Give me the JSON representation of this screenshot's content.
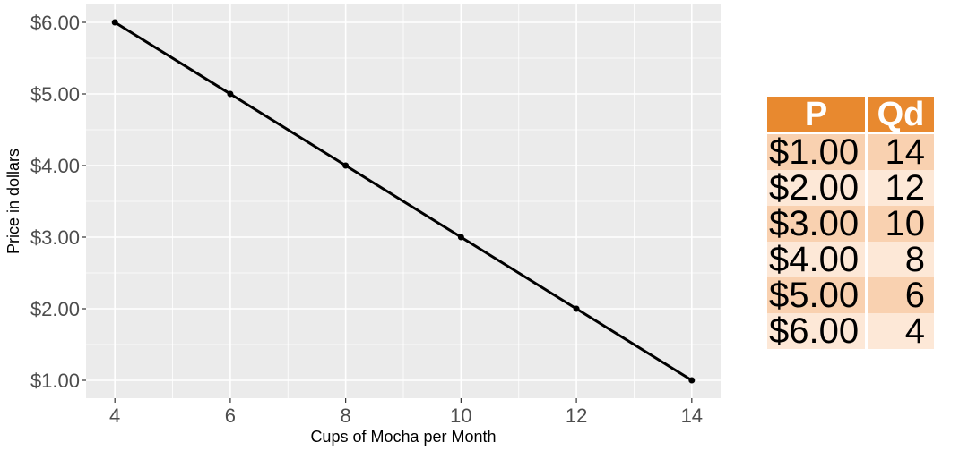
{
  "chart_data": {
    "type": "line",
    "title": "",
    "xlabel": "Cups of Mocha per Month",
    "ylabel": "Price in dollars",
    "x": [
      4,
      6,
      8,
      10,
      12,
      14
    ],
    "y": [
      6,
      5,
      4,
      3,
      2,
      1
    ],
    "xlim": [
      3.5,
      14.5
    ],
    "ylim": [
      0.75,
      6.25
    ],
    "x_ticks": [
      "4",
      "6",
      "8",
      "10",
      "12",
      "14"
    ],
    "y_ticks": [
      "$1.00",
      "$2.00",
      "$3.00",
      "$4.00",
      "$5.00",
      "$6.00"
    ],
    "y_tick_values": [
      1,
      2,
      3,
      4,
      5,
      6
    ],
    "grid": true,
    "line_color": "#000000",
    "panel_color": "#ebebeb",
    "grid_color": "#ffffff"
  },
  "table": {
    "headers": [
      "P",
      "Qd"
    ],
    "rows": [
      {
        "p": "$1.00",
        "qd": "14"
      },
      {
        "p": "$2.00",
        "qd": "12"
      },
      {
        "p": "$3.00",
        "qd": "10"
      },
      {
        "p": "$4.00",
        "qd": "8"
      },
      {
        "p": "$5.00",
        "qd": "6"
      },
      {
        "p": "$6.00",
        "qd": "4"
      }
    ],
    "header_color": "#e8892f",
    "row_color_a": "#f9d1b0",
    "row_color_b": "#fde8d7"
  }
}
